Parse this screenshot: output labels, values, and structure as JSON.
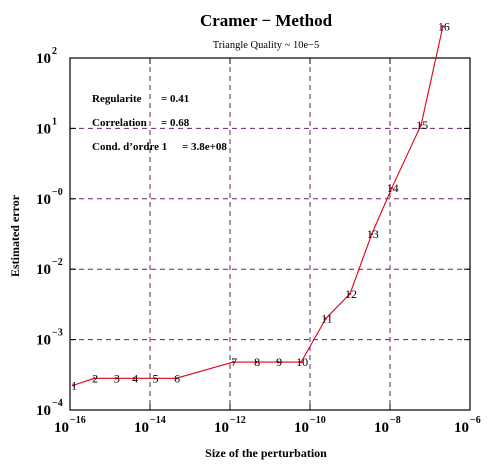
{
  "chart_data": {
    "type": "line",
    "title": "Cramer − Method",
    "subtitle": "Triangle Quality ~ 10e−5",
    "xlabel": "Size of the perturbation",
    "ylabel": "Estimated error",
    "x_scale": "log",
    "y_scale": "log",
    "xlim": [
      1e-16,
      1e-06
    ],
    "x_ticks": [
      {
        "value": 1e-16,
        "base": "10",
        "exp": "−16"
      },
      {
        "value": 1e-14,
        "base": "10",
        "exp": "−14"
      },
      {
        "value": 1e-12,
        "base": "10",
        "exp": "−12"
      },
      {
        "value": 1e-10,
        "base": "10",
        "exp": "−10"
      },
      {
        "value": 1e-08,
        "base": "10",
        "exp": "−8"
      },
      {
        "value": 1e-06,
        "base": "10",
        "exp": "−6"
      }
    ],
    "y_ticks": [
      {
        "base": "10",
        "exp": "−4"
      },
      {
        "base": "10",
        "exp": "−3"
      },
      {
        "base": "10",
        "exp": "−2"
      },
      {
        "base": "10",
        "exp": "−0"
      },
      {
        "base": "10",
        "exp": "1"
      },
      {
        "base": "10",
        "exp": "2"
      }
    ],
    "grid": true,
    "series": [
      {
        "color": "#e0001a",
        "points": [
          {
            "label": "1",
            "x": 1.2e-16,
            "y_tick_pos": 0.35
          },
          {
            "label": "2",
            "x": 4e-16,
            "y_tick_pos": 0.45
          },
          {
            "label": "3",
            "x": 1.4e-15,
            "y_tick_pos": 0.45
          },
          {
            "label": "4",
            "x": 4e-15,
            "y_tick_pos": 0.45
          },
          {
            "label": "5",
            "x": 1.3e-14,
            "y_tick_pos": 0.45
          },
          {
            "label": "6",
            "x": 4.5e-14,
            "y_tick_pos": 0.45
          },
          {
            "label": "7",
            "x": 1.2e-12,
            "y_tick_pos": 0.68
          },
          {
            "label": "8",
            "x": 4.5e-12,
            "y_tick_pos": 0.68
          },
          {
            "label": "9",
            "x": 1.6e-11,
            "y_tick_pos": 0.68
          },
          {
            "label": "10",
            "x": 6e-11,
            "y_tick_pos": 0.68
          },
          {
            "label": "11",
            "x": 2.5e-10,
            "y_tick_pos": 1.3
          },
          {
            "label": "12",
            "x": 1e-09,
            "y_tick_pos": 1.65
          },
          {
            "label": "13",
            "x": 3.5e-09,
            "y_tick_pos": 2.5
          },
          {
            "label": "14",
            "x": 1.1e-08,
            "y_tick_pos": 3.15
          },
          {
            "label": "15",
            "x": 6e-08,
            "y_tick_pos": 4.05
          },
          {
            "label": "16",
            "x": 2.1e-07,
            "y_tick_pos": 5.45
          }
        ]
      }
    ],
    "annotations": [
      {
        "label": "Regularite",
        "value": "= 0.41"
      },
      {
        "label": "Correlation",
        "value": "= 0.68"
      },
      {
        "label": "Cond. d’ordre 1",
        "value": "= 3.8e+08"
      }
    ]
  }
}
